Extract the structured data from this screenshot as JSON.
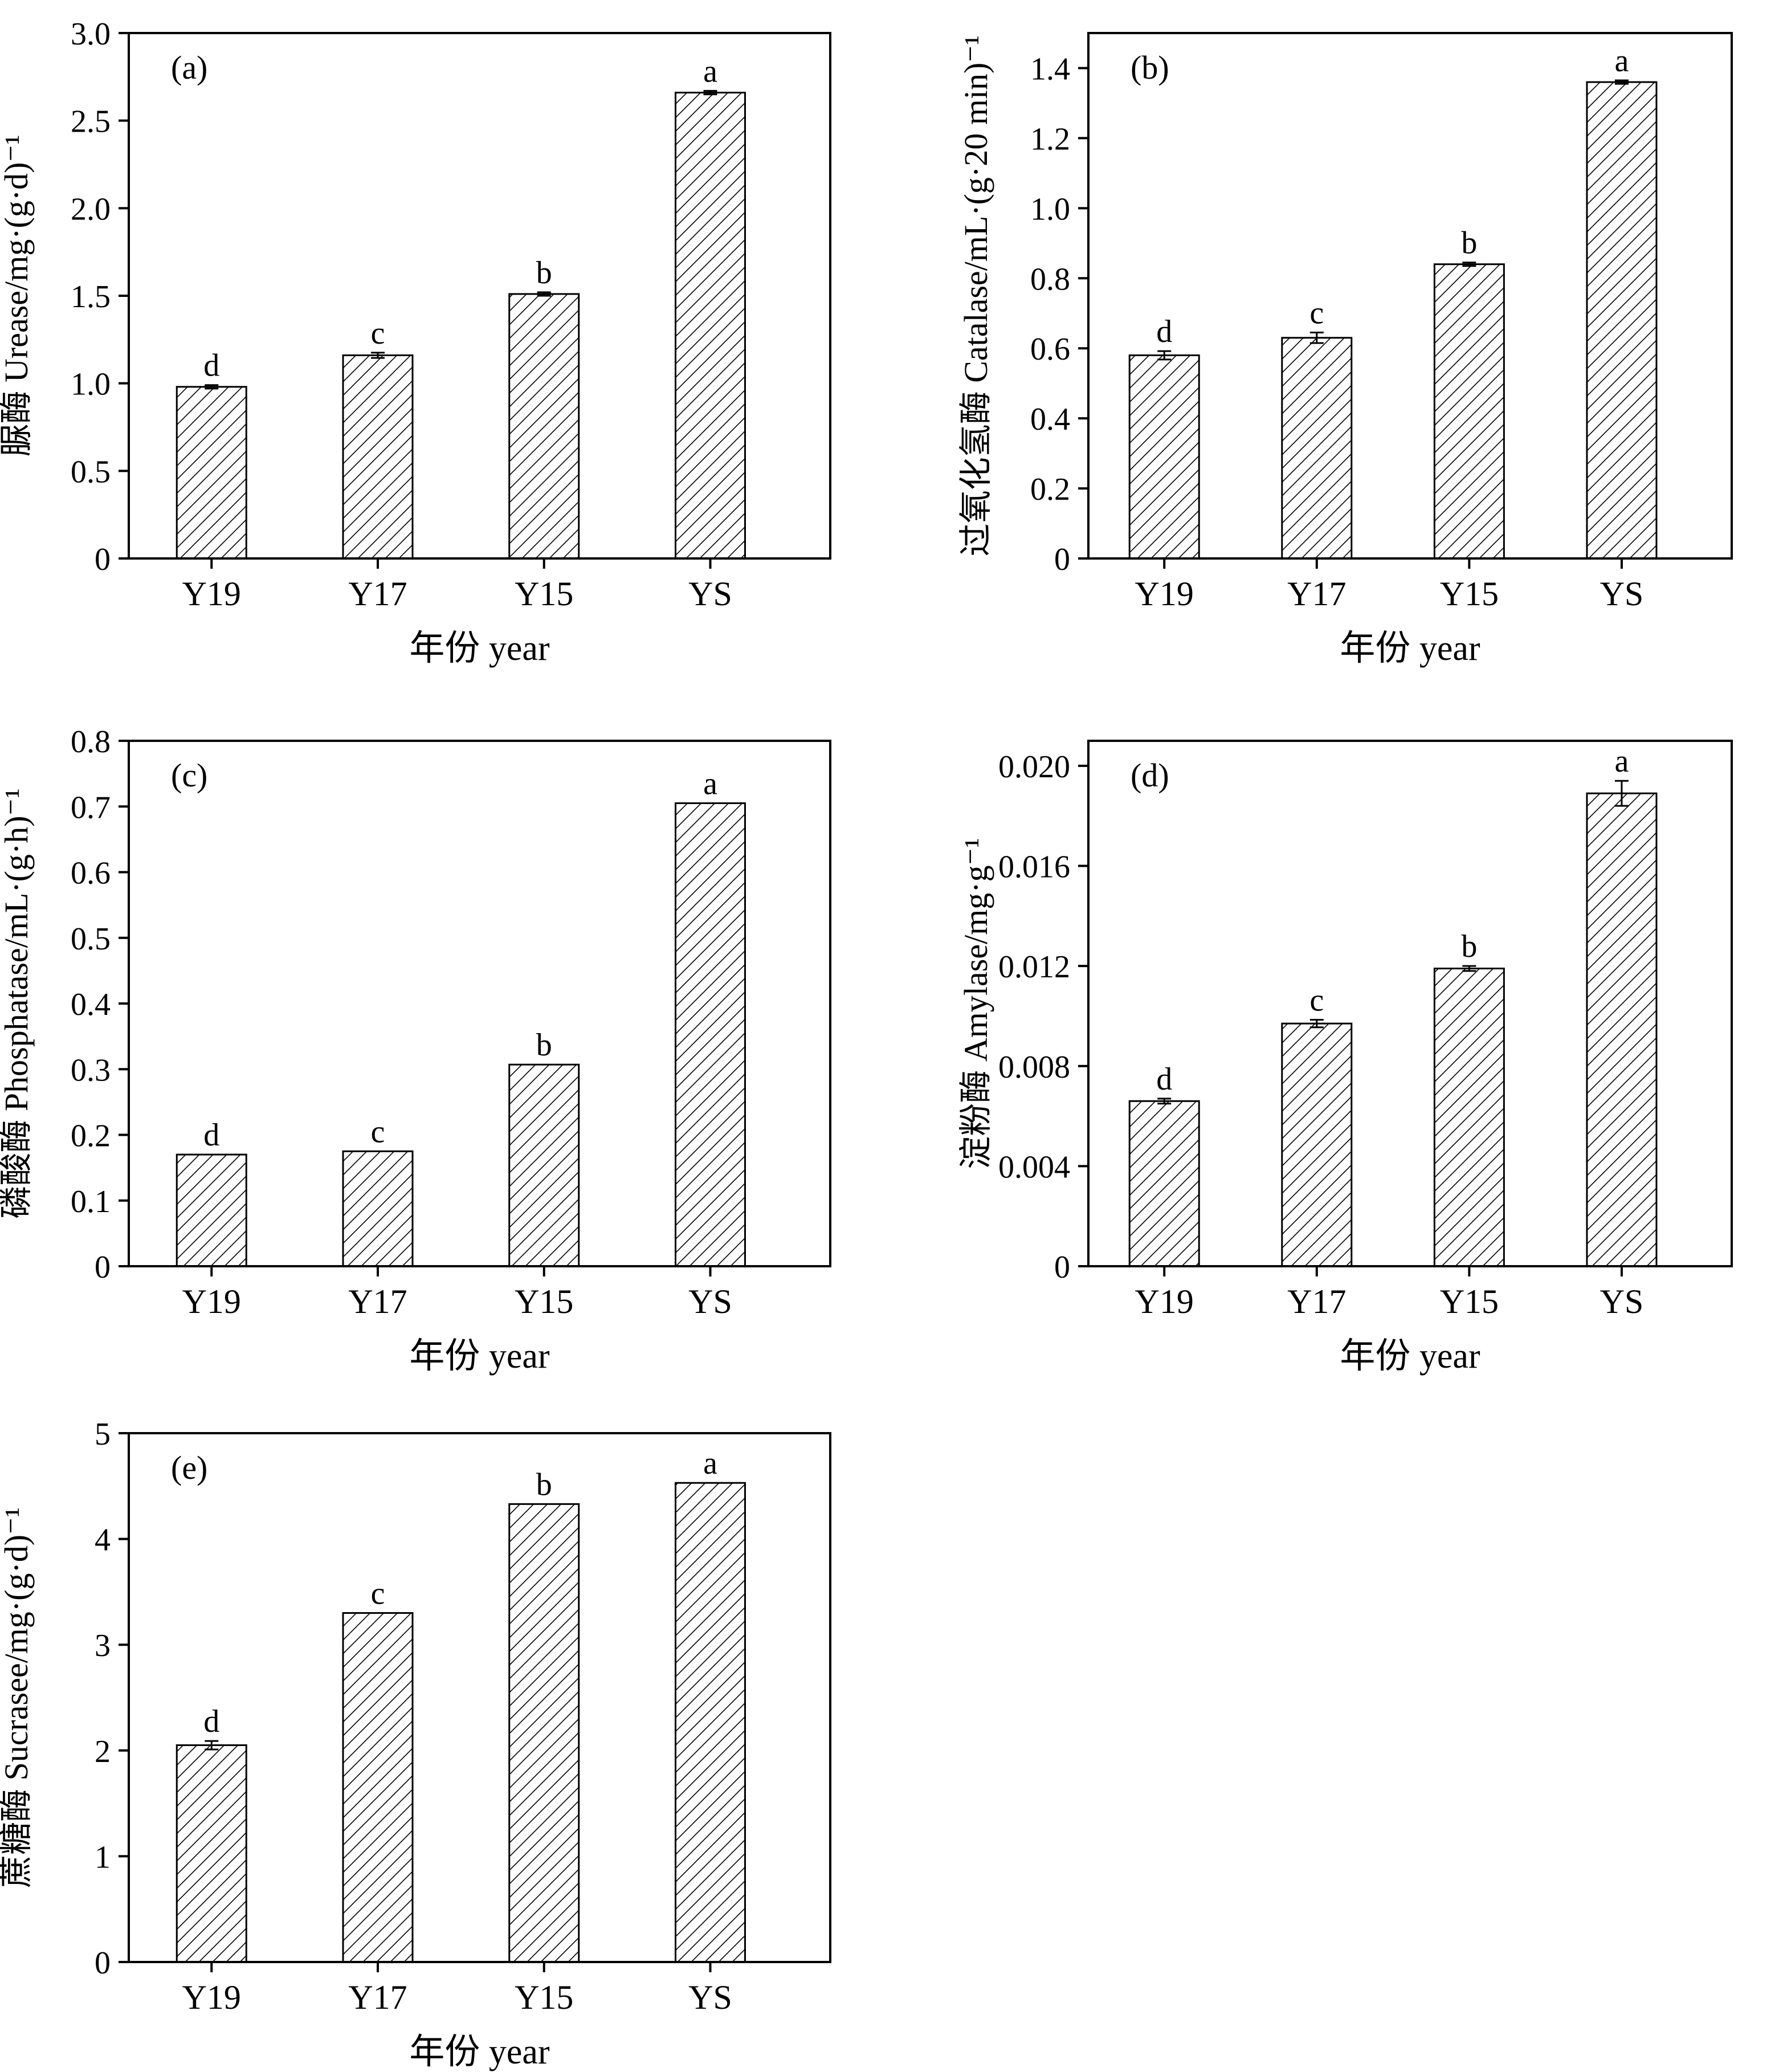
{
  "chart_data": [
    {
      "type": "bar",
      "panel_label": "(a)",
      "ylabel": "脲酶 Urease/mg·(g·d)⁻¹",
      "xlabel": "年份 year",
      "categories": [
        "Y19",
        "Y17",
        "Y15",
        "YS"
      ],
      "values": [
        0.98,
        1.16,
        1.51,
        2.66
      ],
      "errors": [
        0.01,
        0.015,
        0.01,
        0.01
      ],
      "significance": [
        "d",
        "c",
        "b",
        "a"
      ],
      "ylim": [
        0,
        3.0
      ],
      "yticks": [
        0,
        0.5,
        1.0,
        1.5,
        2.0,
        2.5,
        3.0
      ],
      "ytick_labels": [
        "0",
        "0.5",
        "1.0",
        "1.5",
        "2.0",
        "2.5",
        "3.0"
      ]
    },
    {
      "type": "bar",
      "panel_label": "(b)",
      "ylabel": "过氧化氢酶 Catalase/mL·(g·20 min)⁻¹",
      "xlabel": "年份 year",
      "categories": [
        "Y19",
        "Y17",
        "Y15",
        "YS"
      ],
      "values": [
        0.58,
        0.63,
        0.84,
        1.36
      ],
      "errors": [
        0.012,
        0.015,
        0.005,
        0.005
      ],
      "significance": [
        "d",
        "c",
        "b",
        "a"
      ],
      "ylim": [
        0,
        1.5
      ],
      "yticks": [
        0,
        0.2,
        0.4,
        0.6,
        0.8,
        1.0,
        1.2,
        1.4
      ],
      "ytick_labels": [
        "0",
        "0.2",
        "0.4",
        "0.6",
        "0.8",
        "1.0",
        "1.2",
        "1.4"
      ]
    },
    {
      "type": "bar",
      "panel_label": "(c)",
      "ylabel": "磷酸酶 Phosphatase/mL·(g·h)⁻¹",
      "xlabel": "年份 year",
      "categories": [
        "Y19",
        "Y17",
        "Y15",
        "YS"
      ],
      "values": [
        0.17,
        0.175,
        0.307,
        0.705
      ],
      "errors": [
        0,
        0,
        0,
        0
      ],
      "significance": [
        "d",
        "c",
        "b",
        "a"
      ],
      "ylim": [
        0,
        0.8
      ],
      "yticks": [
        0,
        0.1,
        0.2,
        0.3,
        0.4,
        0.5,
        0.6,
        0.7,
        0.8
      ],
      "ytick_labels": [
        "0",
        "0.1",
        "0.2",
        "0.3",
        "0.4",
        "0.5",
        "0.6",
        "0.7",
        "0.8"
      ]
    },
    {
      "type": "bar",
      "panel_label": "(d)",
      "ylabel": "淀粉酶 Amylase/mg·g⁻¹",
      "xlabel": "年份 year",
      "categories": [
        "Y19",
        "Y17",
        "Y15",
        "YS"
      ],
      "values": [
        0.0066,
        0.0097,
        0.0119,
        0.0189
      ],
      "errors": [
        0.0001,
        0.00015,
        0.0001,
        0.0005
      ],
      "significance": [
        "d",
        "c",
        "b",
        "a"
      ],
      "ylim": [
        0,
        0.021
      ],
      "yticks": [
        0,
        0.004,
        0.008,
        0.012,
        0.016,
        0.02
      ],
      "ytick_labels": [
        "0",
        "0.004",
        "0.008",
        "0.012",
        "0.016",
        "0.020"
      ]
    },
    {
      "type": "bar",
      "panel_label": "(e)",
      "ylabel": "蔗糖酶 Sucrasee/mg·(g·d)⁻¹",
      "xlabel": "年份 year",
      "categories": [
        "Y19",
        "Y17",
        "Y15",
        "YS"
      ],
      "values": [
        2.05,
        3.3,
        4.33,
        4.53
      ],
      "errors": [
        0.04,
        0,
        0,
        0
      ],
      "significance": [
        "d",
        "c",
        "b",
        "a"
      ],
      "ylim": [
        0,
        5
      ],
      "yticks": [
        0,
        1,
        2,
        3,
        4,
        5
      ],
      "ytick_labels": [
        "0",
        "1",
        "2",
        "3",
        "4",
        "5"
      ]
    }
  ]
}
